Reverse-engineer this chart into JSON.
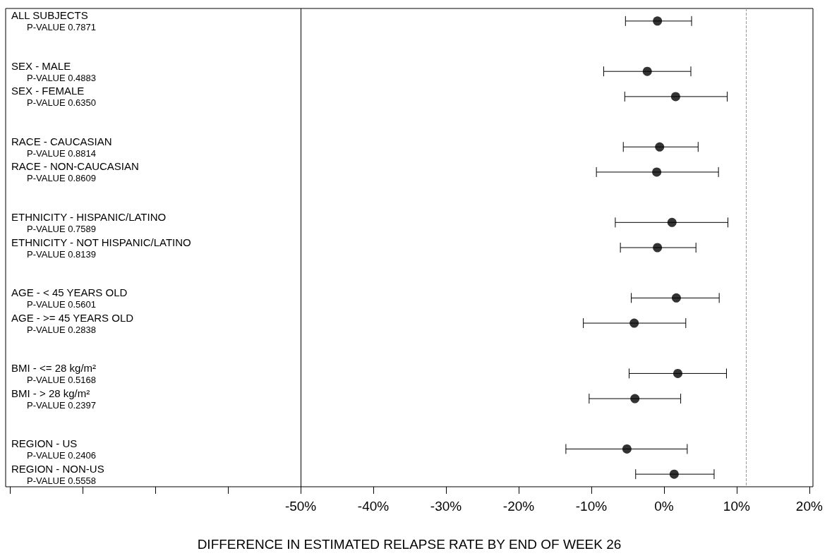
{
  "chart_data": {
    "type": "scatter",
    "orientation": "horizontal",
    "xlabel": "DIFFERENCE IN ESTIMATED RELAPSE RATE BY END OF WEEK 26",
    "categories": [
      "ALL SUBJECTS\nP-VALUE 0.7871",
      null,
      "SEX - MALE\nP-VALUE 0.4883",
      "SEX - FEMALE\nP-VALUE 0.6350",
      null,
      "RACE - CAUCASIAN\nP-VALUE 0.8814",
      "RACE - NON-CAUCASIAN\nP-VALUE 0.8609",
      null,
      "ETHNICITY - HISPANIC/LATINO\nP-VALUE 0.7589",
      "ETHNICITY - NOT HISPANIC/LATINO\nP-VALUE 0.8139",
      null,
      "AGE - < 45 YEARS OLD\nP-VALUE 0.5601",
      "AGE - >= 45 YEARS OLD\nP-VALUE 0.2838",
      null,
      "BMI - <= 28 kg/m²\nP-VALUE 0.5168",
      "BMI - > 28 kg/m²\nP-VALUE 0.2397",
      null,
      "REGION - US\nP-VALUE 0.2406",
      "REGION - NON-US\nP-VALUE 0.5558"
    ],
    "values": [
      -0.9,
      null,
      -2.3,
      1.6,
      null,
      -0.6,
      -1.0,
      null,
      1.1,
      -0.9,
      null,
      1.7,
      -4.1,
      null,
      1.9,
      -4.0,
      null,
      -5.1,
      1.4
    ],
    "errors": [
      [
        -5.3,
        3.8
      ],
      null,
      [
        -8.3,
        3.7
      ],
      [
        -5.4,
        8.7
      ],
      null,
      [
        -5.6,
        4.7
      ],
      [
        -9.3,
        7.5
      ],
      null,
      [
        -6.7,
        8.8
      ],
      [
        -6.0,
        4.4
      ],
      null,
      [
        -4.5,
        7.6
      ],
      [
        -11.1,
        3.0
      ],
      null,
      [
        -4.8,
        8.6
      ],
      [
        -10.3,
        2.3
      ],
      null,
      [
        -13.5,
        3.2
      ],
      [
        -3.9,
        6.9
      ]
    ],
    "color": "#000000",
    "marker": "circle",
    "xlim": [
      -90.6,
      20.5
    ],
    "xticks": [
      {
        "value": -90,
        "label": null
      },
      {
        "value": -80,
        "label": null
      },
      {
        "value": -70,
        "label": null
      },
      {
        "value": -60,
        "label": null
      },
      {
        "value": -50,
        "label": "-50%"
      },
      {
        "value": -40,
        "label": "-40%"
      },
      {
        "value": -30,
        "label": "-30%"
      },
      {
        "value": -20,
        "label": "-20%"
      },
      {
        "value": -10,
        "label": "-10%"
      },
      {
        "value": 0,
        "label": "0%"
      },
      {
        "value": 10,
        "label": "10%"
      },
      {
        "value": 20,
        "label": "20%"
      }
    ],
    "ref_lines": [
      {
        "axis": "x",
        "value": -50,
        "color": "#000000",
        "line_style": "solid"
      },
      {
        "axis": "x",
        "value": 11.3,
        "color": "#999999",
        "line_style": "dashed"
      }
    ],
    "grid": false
  }
}
